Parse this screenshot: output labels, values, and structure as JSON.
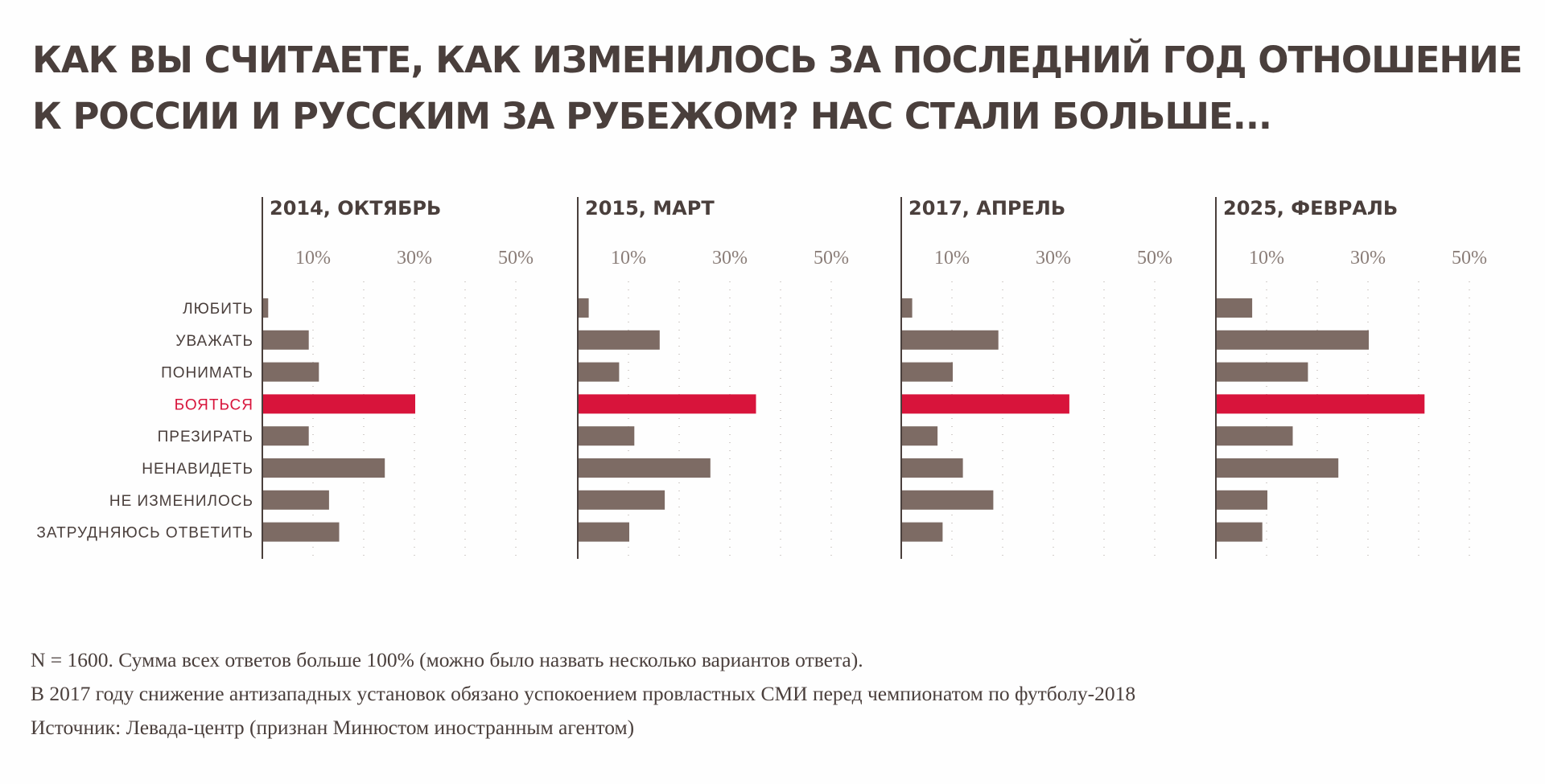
{
  "title": {
    "line1": "КАК ВЫ СЧИТАЕТЕ, КАК ИЗМЕНИЛОСЬ ЗА ПОСЛЕДНИЙ ГОД ОТНОШЕНИЕ",
    "line2": "К РОССИИ И РУССКИМ ЗА РУБЕЖОМ? НАС СТАЛИ БОЛЬШЕ..."
  },
  "chart_data": {
    "type": "bar",
    "orientation": "horizontal",
    "layout": "small-multiples",
    "categories": [
      "ЛЮБИТЬ",
      "УВАЖАТЬ",
      "ПОНИМАТЬ",
      "БОЯТЬСЯ",
      "ПРЕЗИРАТЬ",
      "НЕНАВИДЕТЬ",
      "НЕ ИЗМЕНИЛОСЬ",
      "ЗАТРУДНЯЮСЬ ОТВЕТИТЬ"
    ],
    "highlight_category": "БОЯТЬСЯ",
    "axis": {
      "ticks": [
        10,
        30,
        50
      ],
      "tick_labels": [
        "10%",
        "30%",
        "50%"
      ],
      "gridlines": [
        10,
        20,
        30,
        40,
        50
      ],
      "xlim": [
        0,
        50
      ],
      "unit": "%"
    },
    "series": [
      {
        "name": "2014, ОКТЯБРЬ",
        "values": [
          1,
          9,
          11,
          30,
          9,
          24,
          13,
          15
        ]
      },
      {
        "name": "2015, МАРТ",
        "values": [
          2,
          16,
          8,
          35,
          11,
          26,
          17,
          10
        ]
      },
      {
        "name": "2017, АПРЕЛЬ",
        "values": [
          2,
          19,
          10,
          33,
          7,
          12,
          18,
          8
        ]
      },
      {
        "name": "2025, ФЕВРАЛЬ",
        "values": [
          7,
          30,
          18,
          41,
          15,
          24,
          10,
          9
        ]
      }
    ],
    "colors": {
      "bar": "#7d6b64",
      "highlight": "#d8143b",
      "axis": "#4a3f3c",
      "grid": "#b9b0ac"
    }
  },
  "footnotes": [
    "N = 1600. Сумма всех ответов больше 100% (можно было назвать несколько вариантов ответа).",
    "В 2017 году снижение антизападных установок обязано успокоением провластных СМИ перед чемпионатом по футболу-2018",
    "Источник: Левада-центр (признан Минюстом иностранным агентом)"
  ]
}
